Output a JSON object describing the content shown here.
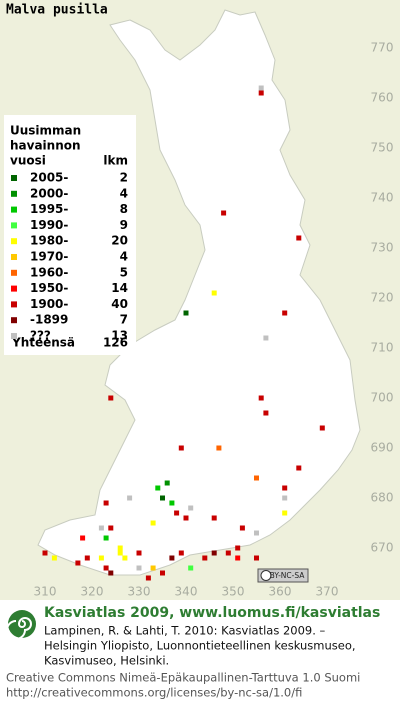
{
  "title": "Malva pusilla",
  "legend": {
    "header": [
      "Uusimman",
      "havainnon"
    ],
    "period_heading": "vuosi",
    "count_heading": "lkm",
    "rows": [
      {
        "label": "2005-",
        "count": "2",
        "color": "#006400"
      },
      {
        "label": "2000-",
        "count": "4",
        "color": "#009000"
      },
      {
        "label": "1995-",
        "count": "8",
        "color": "#00c800"
      },
      {
        "label": "1990-",
        "count": "9",
        "color": "#40ff40"
      },
      {
        "label": "1980-",
        "count": "20",
        "color": "#ffff00"
      },
      {
        "label": "1970-",
        "count": "4",
        "color": "#ffc800"
      },
      {
        "label": "1960-",
        "count": "5",
        "color": "#ff6400"
      },
      {
        "label": "1950-",
        "count": "14",
        "color": "#ff0000"
      },
      {
        "label": "1900-",
        "count": "40",
        "color": "#c80000"
      },
      {
        "label": "-1899",
        "count": "7",
        "color": "#800000"
      },
      {
        "label": "???",
        "count": "13",
        "color": "#c0c0c0"
      }
    ],
    "total_label": "Yhteensä",
    "total": "126"
  },
  "axes": {
    "xticks": [
      310,
      320,
      330,
      340,
      350,
      360,
      370
    ],
    "yticks": [
      770,
      760,
      750,
      740,
      730,
      720,
      710,
      700,
      690,
      680,
      670
    ]
  },
  "squares": [
    [
      356,
      762,
      10
    ],
    [
      356,
      761,
      8
    ],
    [
      348,
      737,
      8
    ],
    [
      364,
      732,
      8
    ],
    [
      346,
      721,
      4
    ],
    [
      340,
      717,
      0
    ],
    [
      361,
      717,
      8
    ],
    [
      357,
      712,
      10
    ],
    [
      356,
      700,
      8
    ],
    [
      357,
      697,
      8
    ],
    [
      324,
      700,
      8
    ],
    [
      369,
      694,
      8
    ],
    [
      339,
      690,
      8
    ],
    [
      347,
      690,
      6
    ],
    [
      364,
      686,
      8
    ],
    [
      355,
      684,
      6
    ],
    [
      361,
      682,
      8
    ],
    [
      361,
      680,
      10
    ],
    [
      328,
      680,
      10
    ],
    [
      323,
      679,
      8
    ],
    [
      334,
      682,
      2
    ],
    [
      336,
      683,
      1
    ],
    [
      335,
      680,
      0
    ],
    [
      337,
      679,
      2
    ],
    [
      338,
      677,
      8
    ],
    [
      340,
      676,
      8
    ],
    [
      341,
      678,
      10
    ],
    [
      333,
      675,
      4
    ],
    [
      346,
      676,
      8
    ],
    [
      352,
      674,
      8
    ],
    [
      361,
      677,
      4
    ],
    [
      355,
      673,
      10
    ],
    [
      322,
      674,
      10
    ],
    [
      323,
      672,
      2
    ],
    [
      324,
      674,
      8
    ],
    [
      326,
      669,
      4
    ],
    [
      326,
      670,
      4
    ],
    [
      310,
      669,
      8
    ],
    [
      312,
      668,
      4
    ],
    [
      317,
      667,
      8
    ],
    [
      319,
      668,
      8
    ],
    [
      322,
      668,
      4
    ],
    [
      323,
      666,
      8
    ],
    [
      327,
      668,
      4
    ],
    [
      330,
      669,
      8
    ],
    [
      333,
      666,
      5
    ],
    [
      335,
      665,
      8
    ],
    [
      337,
      668,
      9
    ],
    [
      339,
      669,
      8
    ],
    [
      341,
      666,
      3
    ],
    [
      344,
      668,
      8
    ],
    [
      346,
      669,
      9
    ],
    [
      349,
      669,
      8
    ],
    [
      351,
      668,
      7
    ],
    [
      355,
      668,
      8
    ],
    [
      332,
      664,
      8
    ],
    [
      324,
      665,
      9
    ],
    [
      330,
      666,
      10
    ],
    [
      351,
      670,
      8
    ],
    [
      318,
      672,
      7
    ]
  ],
  "license_badge": "BY-NC-SA",
  "footer": {
    "headline": "Kasviatlas 2009, www.luomus.fi/kasviatlas",
    "citation": [
      "Lampinen, R. & Lahti, T. 2010: Kasviatlas 2009. –",
      "Helsingin Yliopisto, Luonnontieteellinen keskusmuseo,",
      "Kasvimuseo, Helsinki."
    ],
    "license": [
      "Creative Commons Nimeä-Epäkaupallinen-Tarttuva 1.0 Suomi",
      "http://creativecommons.org/licenses/by-nc-sa/1.0/fi"
    ]
  }
}
